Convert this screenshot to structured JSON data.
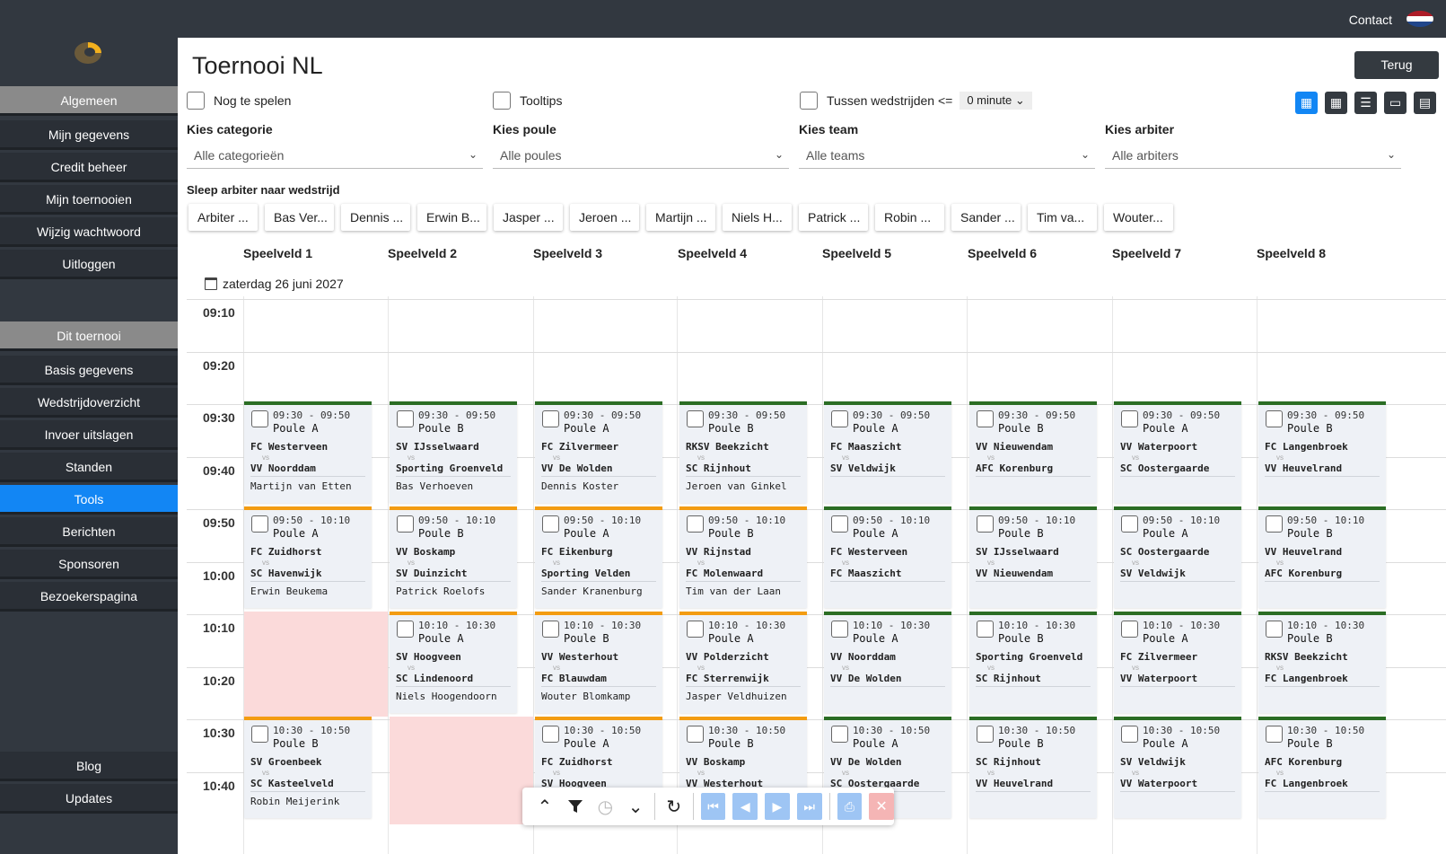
{
  "topbar": {
    "contact": "Contact",
    "flag_colors": [
      "#ae1c28",
      "#ffffff",
      "#21468b"
    ]
  },
  "sidebar": {
    "section1": "Algemeen",
    "items1": [
      "Mijn gegevens",
      "Credit beheer",
      "Mijn toernooien",
      "Wijzig wachtwoord",
      "Uitloggen"
    ],
    "section2": "Dit toernooi",
    "items2": [
      "Basis gegevens",
      "Wedstrijdoverzicht",
      "Invoer uitslagen",
      "Standen",
      "Tools",
      "Berichten",
      "Sponsoren",
      "Bezoekerspagina"
    ],
    "active": "Tools",
    "bottom": [
      "Blog",
      "Updates"
    ]
  },
  "page": {
    "title": "Toernooi NL",
    "back_button": "Terug"
  },
  "options": {
    "nog_te_spelen": "Nog te spelen",
    "tooltips": "Tooltips",
    "tussen": "Tussen wedstrijden <=",
    "minute_value": "0 minute"
  },
  "filters": [
    {
      "label": "Kies categorie",
      "value": "Alle categorieën"
    },
    {
      "label": "Kies poule",
      "value": "Alle poules"
    },
    {
      "label": "Kies team",
      "value": "Alle teams"
    },
    {
      "label": "Kies arbiter",
      "value": "Alle arbiters"
    }
  ],
  "arbiters": {
    "label": "Sleep arbiter naar wedstrijd",
    "chips": [
      "Arbiter ...",
      "Bas Ver...",
      "Dennis ...",
      "Erwin B...",
      "Jasper ...",
      "Jeroen ...",
      "Martijn ...",
      "Niels H...",
      "Patrick ...",
      "Robin ...",
      "Sander ...",
      "Tim va...",
      "Wouter..."
    ]
  },
  "fields": [
    "Speelveld 1",
    "Speelveld 2",
    "Speelveld 3",
    "Speelveld 4",
    "Speelveld 5",
    "Speelveld 6",
    "Speelveld 7",
    "Speelveld 8"
  ],
  "date": "zaterdag 26 juni 2027",
  "times": [
    "09:10",
    "09:20",
    "09:30",
    "09:40",
    "09:50",
    "10:00",
    "10:10",
    "10:20",
    "10:30",
    "10:40"
  ],
  "rows": [
    {
      "color": "green",
      "matches": [
        {
          "time": "09:30 - 09:50",
          "poule": "Poule A",
          "t1": "FC Westerveen",
          "t2": "VV Noorddam",
          "arb": "Martijn van Etten",
          "color": "green"
        },
        {
          "time": "09:30 - 09:50",
          "poule": "Poule B",
          "t1": "SV IJsselwaard",
          "t2": "Sporting Groenveld",
          "arb": "Bas Verhoeven",
          "color": "green"
        },
        {
          "time": "09:30 - 09:50",
          "poule": "Poule A",
          "t1": "FC Zilvermeer",
          "t2": "VV De Wolden",
          "arb": "Dennis Koster",
          "color": "green"
        },
        {
          "time": "09:30 - 09:50",
          "poule": "Poule B",
          "t1": "RKSV Beekzicht",
          "t2": "SC Rijnhout",
          "arb": "Jeroen van Ginkel",
          "color": "green"
        },
        {
          "time": "09:30 - 09:50",
          "poule": "Poule A",
          "t1": "FC Maaszicht",
          "t2": "SV Veldwijk",
          "arb": "",
          "color": "green"
        },
        {
          "time": "09:30 - 09:50",
          "poule": "Poule B",
          "t1": "VV Nieuwendam",
          "t2": "AFC Korenburg",
          "arb": "",
          "color": "green"
        },
        {
          "time": "09:30 - 09:50",
          "poule": "Poule A",
          "t1": "VV Waterpoort",
          "t2": "SC Oostergaarde",
          "arb": "",
          "color": "green"
        },
        {
          "time": "09:30 - 09:50",
          "poule": "Poule B",
          "t1": "FC Langenbroek",
          "t2": "VV Heuvelrand",
          "arb": "",
          "color": "green"
        }
      ]
    },
    {
      "matches": [
        {
          "time": "09:50 - 10:10",
          "poule": "Poule A",
          "t1": "FC Zuidhorst",
          "t2": "SC Havenwijk",
          "arb": "Erwin Beukema",
          "color": "orange"
        },
        {
          "time": "09:50 - 10:10",
          "poule": "Poule B",
          "t1": "VV Boskamp",
          "t2": "SV Duinzicht",
          "arb": "Patrick Roelofs",
          "color": "orange"
        },
        {
          "time": "09:50 - 10:10",
          "poule": "Poule A",
          "t1": "FC Eikenburg",
          "t2": "Sporting Velden",
          "arb": "Sander Kranenburg",
          "color": "orange"
        },
        {
          "time": "09:50 - 10:10",
          "poule": "Poule B",
          "t1": "VV Rijnstad",
          "t2": "FC Molenwaard",
          "arb": "Tim van der Laan",
          "color": "orange"
        },
        {
          "time": "09:50 - 10:10",
          "poule": "Poule A",
          "t1": "FC Westerveen",
          "t2": "FC Maaszicht",
          "arb": "",
          "color": "green"
        },
        {
          "time": "09:50 - 10:10",
          "poule": "Poule B",
          "t1": "SV IJsselwaard",
          "t2": "VV Nieuwendam",
          "arb": "",
          "color": "green"
        },
        {
          "time": "09:50 - 10:10",
          "poule": "Poule A",
          "t1": "SC Oostergaarde",
          "t2": "SV Veldwijk",
          "arb": "",
          "color": "green"
        },
        {
          "time": "09:50 - 10:10",
          "poule": "Poule B",
          "t1": "VV Heuvelrand",
          "t2": "AFC Korenburg",
          "arb": "",
          "color": "green"
        }
      ]
    },
    {
      "matches": [
        null,
        {
          "time": "10:10 - 10:30",
          "poule": "Poule A",
          "t1": "SV Hoogveen",
          "t2": "SC Lindenoord",
          "arb": "Niels Hoogendoorn",
          "color": "orange"
        },
        {
          "time": "10:10 - 10:30",
          "poule": "Poule B",
          "t1": "VV Westerhout",
          "t2": "FC Blauwdam",
          "arb": "Wouter Blomkamp",
          "color": "orange"
        },
        {
          "time": "10:10 - 10:30",
          "poule": "Poule A",
          "t1": "VV Polderzicht",
          "t2": "FC Sterrenwijk",
          "arb": "Jasper Veldhuizen",
          "color": "orange"
        },
        {
          "time": "10:10 - 10:30",
          "poule": "Poule A",
          "t1": "VV Noorddam",
          "t2": "VV De Wolden",
          "arb": "",
          "color": "green"
        },
        {
          "time": "10:10 - 10:30",
          "poule": "Poule B",
          "t1": "Sporting Groenveld",
          "t2": "SC Rijnhout",
          "arb": "",
          "color": "green"
        },
        {
          "time": "10:10 - 10:30",
          "poule": "Poule A",
          "t1": "FC Zilvermeer",
          "t2": "VV Waterpoort",
          "arb": "",
          "color": "green"
        },
        {
          "time": "10:10 - 10:30",
          "poule": "Poule B",
          "t1": "RKSV Beekzicht",
          "t2": "FC Langenbroek",
          "arb": "",
          "color": "green"
        }
      ]
    },
    {
      "matches": [
        {
          "time": "10:30 - 10:50",
          "poule": "Poule B",
          "t1": "SV Groenbeek",
          "t2": "SC Kasteelveld",
          "arb": "Robin Meijerink",
          "color": "orange"
        },
        null,
        {
          "time": "10:30 - 10:50",
          "poule": "Poule A",
          "t1": "FC Zuidhorst",
          "t2": "SV Hoogveen",
          "arb": "",
          "color": "orange"
        },
        {
          "time": "10:30 - 10:50",
          "poule": "Poule B",
          "t1": "VV Boskamp",
          "t2": "VV Westerhout",
          "arb": "",
          "color": "orange"
        },
        {
          "time": "10:30 - 10:50",
          "poule": "Poule A",
          "t1": "VV De Wolden",
          "t2": "SC Oostergaarde",
          "arb": "",
          "color": "green"
        },
        {
          "time": "10:30 - 10:50",
          "poule": "Poule B",
          "t1": "SC Rijnhout",
          "t2": "VV Heuvelrand",
          "arb": "",
          "color": "green"
        },
        {
          "time": "10:30 - 10:50",
          "poule": "Poule A",
          "t1": "SV Veldwijk",
          "t2": "VV Waterpoort",
          "arb": "",
          "color": "green"
        },
        {
          "time": "10:30 - 10:50",
          "poule": "Poule B",
          "t1": "AFC Korenburg",
          "t2": "FC Langenbroek",
          "arb": "",
          "color": "green"
        }
      ]
    }
  ],
  "vs_text": "vs",
  "colors": {
    "green": "#2b6d24",
    "orange": "#f39c12",
    "accent": "#1286f4",
    "dark": "#323840",
    "unavailable": "#fbdada"
  },
  "toolbar_icons": [
    "chevron-up-icon",
    "filter-icon",
    "clock-icon",
    "chevron-down-icon",
    "refresh-icon",
    "first-page-icon",
    "prev-page-icon",
    "next-page-icon",
    "last-page-icon",
    "print-icon",
    "close-icon"
  ]
}
